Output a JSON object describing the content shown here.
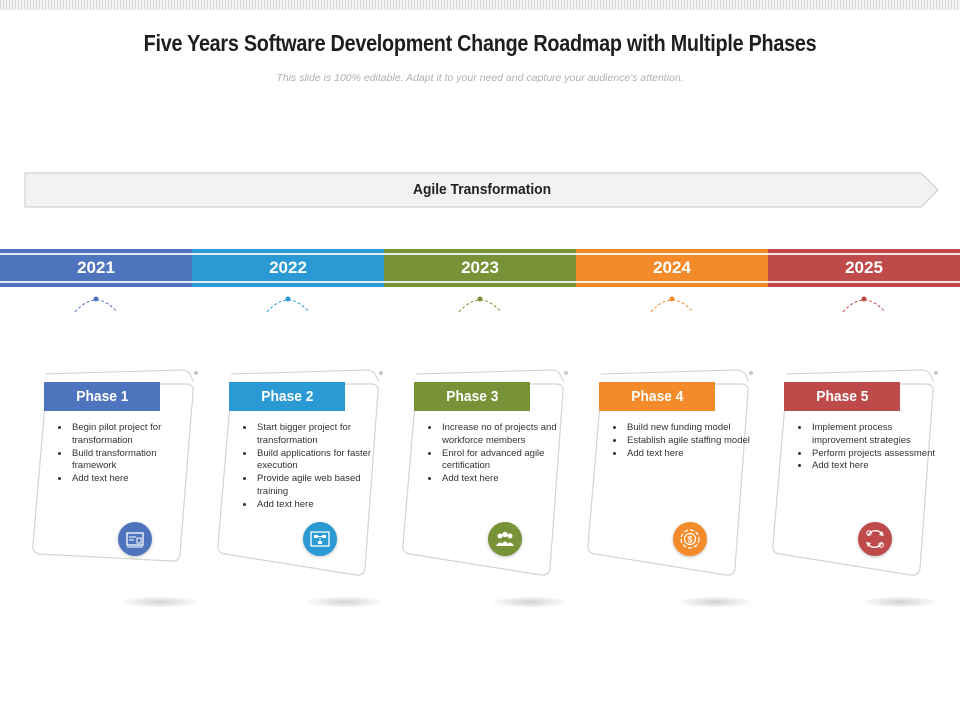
{
  "page": {
    "title": "Five Years Software Development Change Roadmap with Multiple Phases",
    "subtitle": "This slide is 100% editable. Adapt it to your need and capture your audience's attention."
  },
  "banner": {
    "label": "Agile Transformation"
  },
  "colors": {
    "blue": "#4f74be",
    "cyan": "#2b9ad4",
    "green": "#779237",
    "orange": "#f38b2b",
    "red": "#be4b49"
  },
  "years": [
    "2021",
    "2022",
    "2023",
    "2024",
    "2025"
  ],
  "phases": [
    {
      "label": "Phase 1",
      "bullets": [
        "Begin pilot project for transformation",
        "Build transformation framework",
        "Add text here"
      ],
      "icon": "blueprint-icon"
    },
    {
      "label": "Phase 2",
      "bullets": [
        "Start bigger project for transformation",
        "Build applications for faster execution",
        "Provide agile web based training",
        "Add text here"
      ],
      "icon": "flowchart-icon"
    },
    {
      "label": "Phase 3",
      "bullets": [
        "Increase no of projects and workforce members",
        "Enrol for advanced agile certification",
        "Add text here"
      ],
      "icon": "team-icon"
    },
    {
      "label": "Phase 4",
      "bullets": [
        "Build new funding model",
        "Establish agile staffing model",
        "Add text here"
      ],
      "icon": "funding-icon"
    },
    {
      "label": "Phase 5",
      "bullets": [
        "Implement process improvement strategies",
        "Perform projects assessment",
        "Add text here"
      ],
      "icon": "process-cycle-icon"
    }
  ]
}
